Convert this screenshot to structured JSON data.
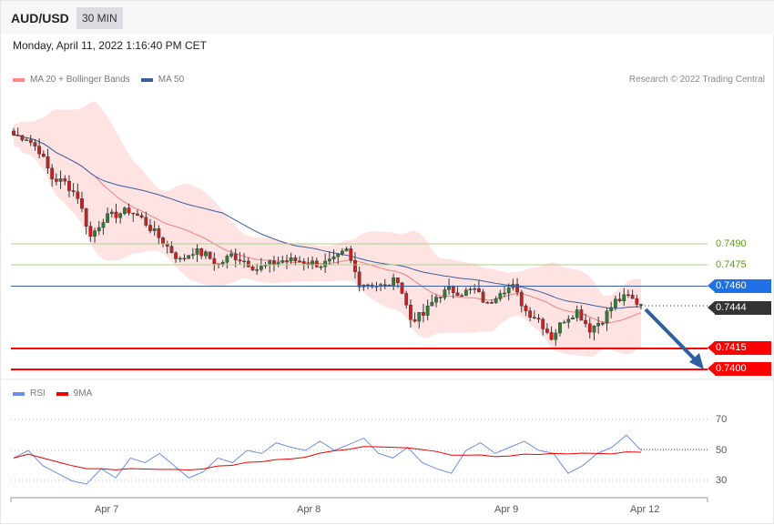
{
  "header": {
    "symbol": "AUD/USD",
    "timeframe": "30 MIN",
    "datetime": "Monday, April 11, 2022 1:16:40 PM CET"
  },
  "legend": {
    "bb": "MA 20 + Bollinger Bands",
    "ma50": "MA 50",
    "copyright": "Research © 2022 Trading Central",
    "rsi": "RSI",
    "rsi_ma": "9MA"
  },
  "levels": {
    "r2": "0.7490",
    "r1": "0.7475",
    "ma": "0.7460",
    "last": "0.7444",
    "s1": "0.7415",
    "s2": "0.7400"
  },
  "colors": {
    "bull": "#2e7d32",
    "bear": "#cc1f1f",
    "ma50": "#3a5fa0",
    "bb": "#f08080",
    "support": "#ff0000",
    "last": "#333333",
    "ma_tag": "#1f6fe5",
    "arrow": "#2e5f9e"
  },
  "rsi_axis": [
    "70",
    "50",
    "30"
  ],
  "x_axis": [
    "Apr 7",
    "Apr 8",
    "Apr 9",
    "Apr 12"
  ],
  "chart_data": {
    "type": "candlestick",
    "price_range": [
      0.74,
      0.749
    ],
    "closes_keypoints": [
      0.7568,
      0.7566,
      0.7557,
      0.7537,
      0.7534,
      0.7524,
      0.7495,
      0.7508,
      0.7511,
      0.7514,
      0.7508,
      0.7498,
      0.7488,
      0.7478,
      0.7485,
      0.7482,
      0.7475,
      0.7482,
      0.7478,
      0.7472,
      0.7475,
      0.7478,
      0.7478,
      0.7477,
      0.7475,
      0.7478,
      0.7485,
      0.7462,
      0.7461,
      0.7459,
      0.7465,
      0.7436,
      0.7439,
      0.7452,
      0.7457,
      0.7455,
      0.7457,
      0.7446,
      0.7457,
      0.7459,
      0.7442,
      0.7436,
      0.7423,
      0.7436,
      0.7442,
      0.7429,
      0.7436,
      0.7449,
      0.7452,
      0.7446
    ],
    "rsi": [
      45,
      50,
      40,
      35,
      30,
      28,
      38,
      32,
      45,
      42,
      48,
      40,
      32,
      36,
      45,
      42,
      50,
      48,
      55,
      52,
      50,
      56,
      50,
      54,
      58,
      48,
      45,
      52,
      42,
      38,
      35,
      50,
      55,
      48,
      52,
      56,
      50,
      48,
      35,
      40,
      48,
      52,
      60,
      50
    ]
  }
}
